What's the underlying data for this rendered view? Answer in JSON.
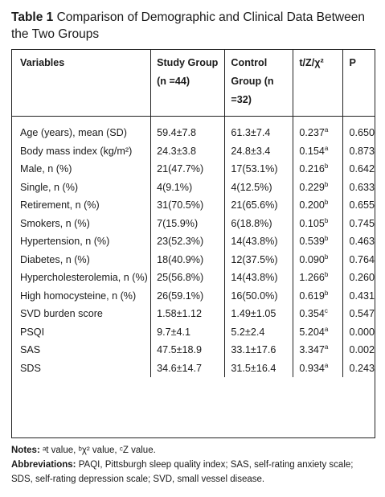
{
  "caption": {
    "label": "Table 1",
    "title": "Comparison of Demographic and Clinical Data Between the Two Groups"
  },
  "headers": [
    "Variables",
    "Study Group (n =44)",
    "Control Group (n =32)",
    "t/Z/χ²",
    "P"
  ],
  "rows": [
    {
      "variable": "Age (years), mean (SD)",
      "study": "59.4±7.8",
      "control": "61.3±7.4",
      "stat": "0.237",
      "mark": "a",
      "p": "0.650"
    },
    {
      "variable": "Body mass index (kg/m²)",
      "study": "24.3±3.8",
      "control": "24.8±3.4",
      "stat": "0.154",
      "mark": "a",
      "p": "0.873"
    },
    {
      "variable": "Male, n (%)",
      "study": "21(47.7%)",
      "control": "17(53.1%)",
      "stat": "0.216",
      "mark": "b",
      "p": "0.642"
    },
    {
      "variable": "Single, n (%)",
      "study": "4(9.1%)",
      "control": "4(12.5%)",
      "stat": "0.229",
      "mark": "b",
      "p": "0.633"
    },
    {
      "variable": "Retirement, n (%)",
      "study": "31(70.5%)",
      "control": "21(65.6%)",
      "stat": "0.200",
      "mark": "b",
      "p": "0.655"
    },
    {
      "variable": "Smokers, n (%)",
      "study": "7(15.9%)",
      "control": "6(18.8%)",
      "stat": "0.105",
      "mark": "b",
      "p": "0.745"
    },
    {
      "variable": "Hypertension, n (%)",
      "study": "23(52.3%)",
      "control": "14(43.8%)",
      "stat": "0.539",
      "mark": "b",
      "p": "0.463"
    },
    {
      "variable": "Diabetes, n (%)",
      "study": "18(40.9%)",
      "control": "12(37.5%)",
      "stat": "0.090",
      "mark": "b",
      "p": "0.764"
    },
    {
      "variable": "Hypercholesterolemia, n (%)",
      "study": "25(56.8%)",
      "control": "14(43.8%)",
      "stat": "1.266",
      "mark": "b",
      "p": "0.260"
    },
    {
      "variable": "High homocysteine, n (%)",
      "study": "26(59.1%)",
      "control": "16(50.0%)",
      "stat": "0.619",
      "mark": "b",
      "p": "0.431"
    },
    {
      "variable": "SVD burden score",
      "study": "1.58±1.12",
      "control": "1.49±1.05",
      "stat": "0.354",
      "mark": "c",
      "p": "0.547"
    },
    {
      "variable": "PSQI",
      "study": "9.7±4.1",
      "control": "5.2±2.4",
      "stat": "5.204",
      "mark": "a",
      "p": "0.000"
    },
    {
      "variable": "SAS",
      "study": "47.5±18.9",
      "control": "33.1±17.6",
      "stat": "3.347",
      "mark": "a",
      "p": "0.002"
    },
    {
      "variable": "SDS",
      "study": "34.6±14.7",
      "control": "31.5±16.4",
      "stat": "0.934",
      "mark": "a",
      "p": "0.243"
    }
  ],
  "notes": {
    "notes_label": "Notes:",
    "notes_text": "ᵃt value, ᵇχ² value, ᶜZ value.",
    "abbr_label": "Abbreviations:",
    "abbr_text": "PAQI, Pittsburgh sleep quality index; SAS, self-rating anxiety scale; SDS, self-rating depression scale; SVD, small vessel disease."
  }
}
